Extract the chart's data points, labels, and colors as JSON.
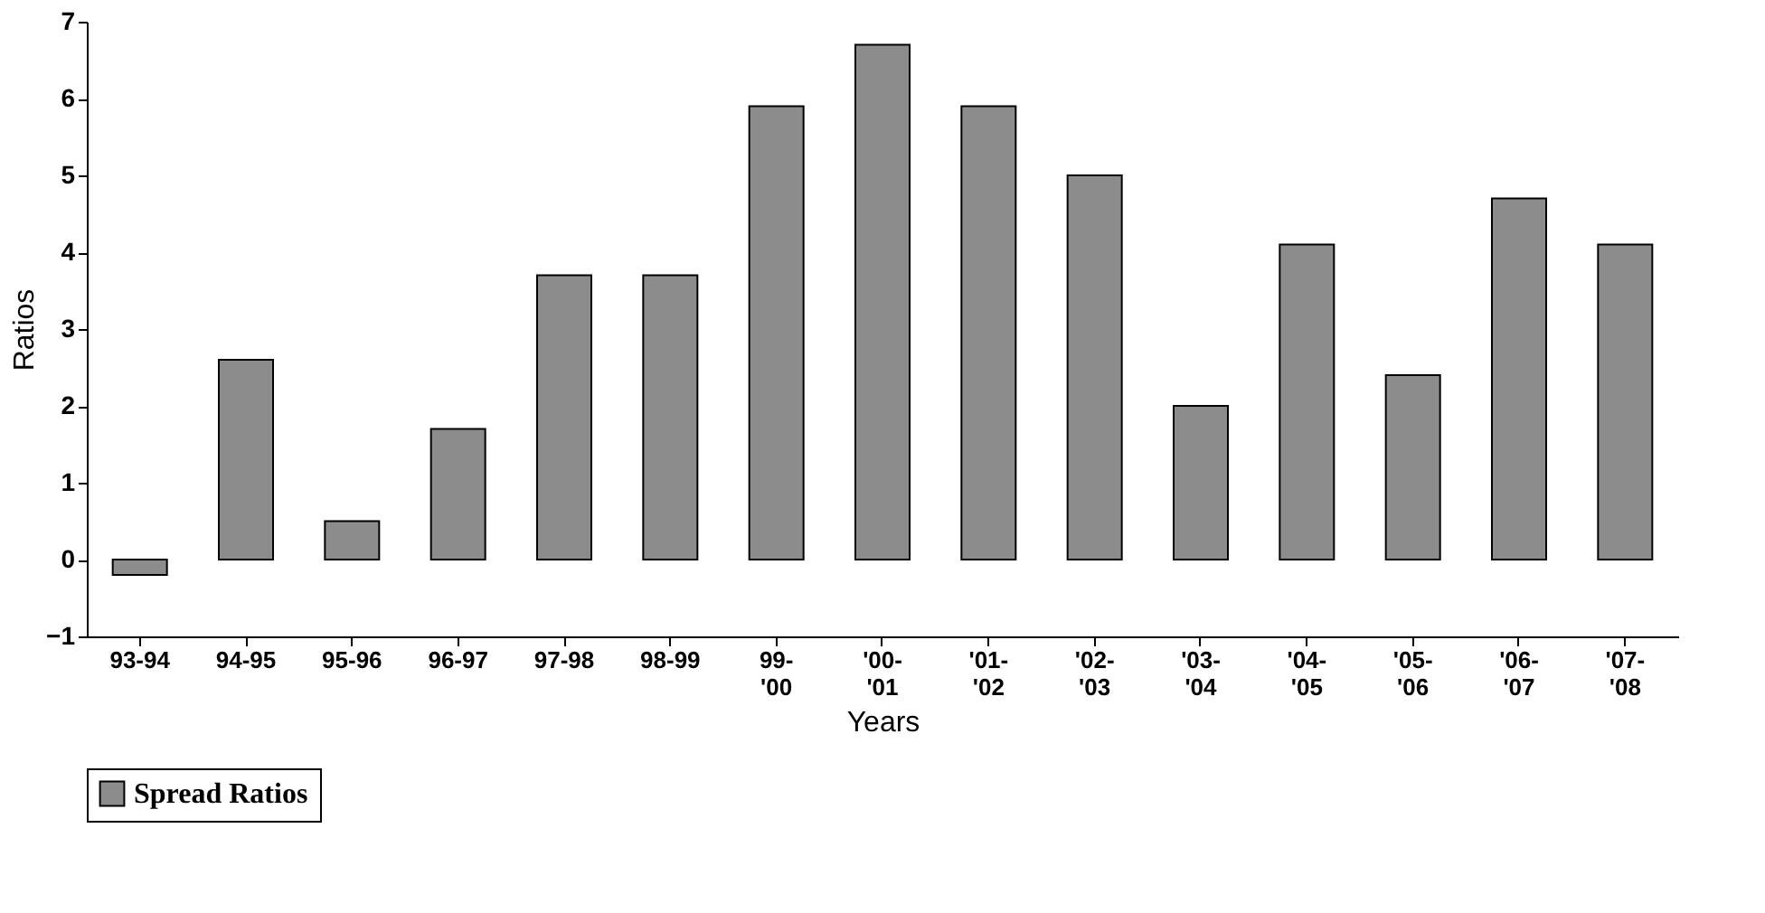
{
  "chart_data": {
    "type": "bar",
    "xlabel": "Years",
    "ylabel": "Ratios",
    "categories": [
      "93-94",
      "94-95",
      "95-96",
      "96-97",
      "97-98",
      "98-99",
      "99-'00",
      "'00-'01",
      "'01-'02",
      "'02-'03",
      "'03-'04",
      "'04-'05",
      "'05-'06",
      "'06-'07",
      "'07-'08"
    ],
    "series": [
      {
        "name": "Spread Ratios",
        "color": "#8c8c8c",
        "values": [
          -0.2,
          2.6,
          0.5,
          1.7,
          3.7,
          3.7,
          5.9,
          6.7,
          5.9,
          5.0,
          2.0,
          4.1,
          2.4,
          4.7,
          4.1
        ]
      }
    ],
    "ylim": [
      -1,
      7
    ],
    "yticks": [
      -1,
      0,
      1,
      2,
      3,
      4,
      5,
      6,
      7
    ],
    "grid": false,
    "legend": "bottom"
  }
}
